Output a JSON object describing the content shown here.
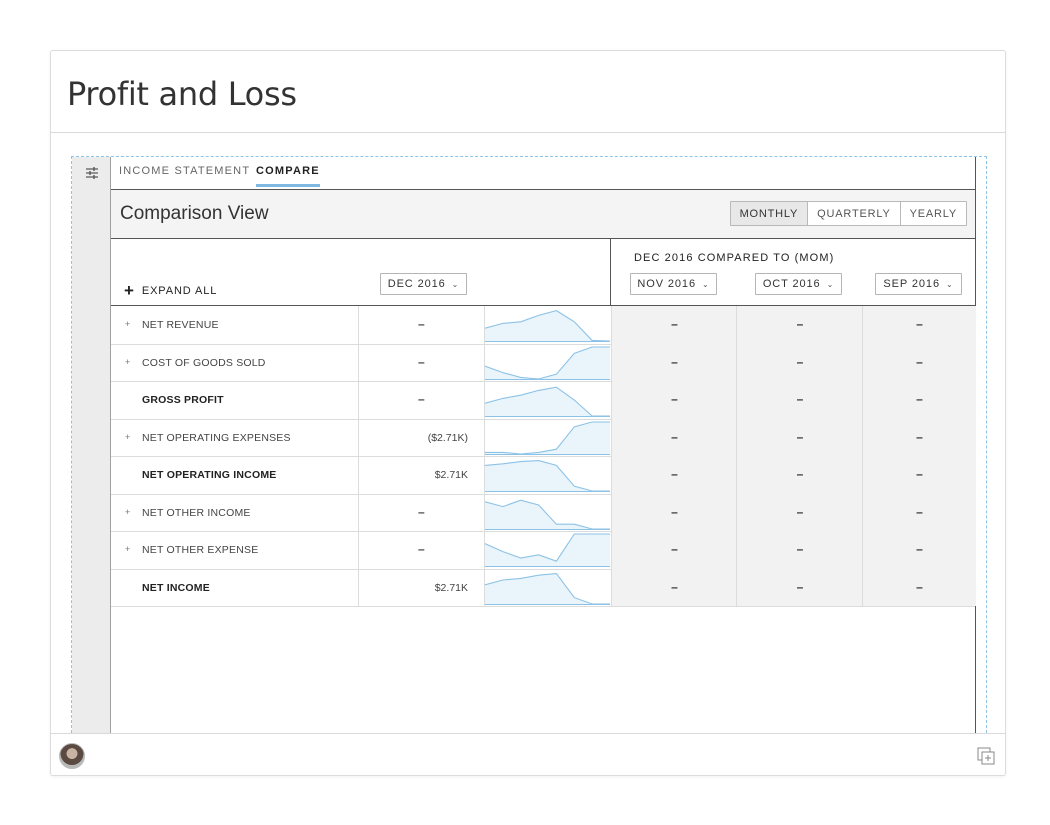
{
  "page": {
    "title": "Profit and Loss"
  },
  "tabs": [
    {
      "label": "INCOME STATEMENT",
      "active": false
    },
    {
      "label": "COMPARE",
      "active": true
    }
  ],
  "view": {
    "title": "Comparison View",
    "periods": [
      {
        "label": "MONTHLY",
        "active": true
      },
      {
        "label": "QUARTERLY",
        "active": false
      },
      {
        "label": "YEARLY",
        "active": false
      }
    ]
  },
  "table": {
    "expand_all": "EXPAND ALL",
    "base_period": "DEC 2016",
    "compare_label": "DEC 2016 COMPARED TO (MOM)",
    "compare_periods": [
      "NOV 2016",
      "OCT 2016",
      "SEP 2016"
    ],
    "rows": [
      {
        "label": "NET REVENUE",
        "expandable": true,
        "bold": false,
        "value": "–",
        "compare": [
          "–",
          "–",
          "–"
        ],
        "spark": [
          0.4,
          0.55,
          0.6,
          0.8,
          0.95,
          0.6,
          0.02,
          0.0
        ]
      },
      {
        "label": "COST OF GOODS SOLD",
        "expandable": true,
        "bold": false,
        "value": "–",
        "compare": [
          "–",
          "–",
          "–"
        ],
        "spark": [
          0.4,
          0.2,
          0.05,
          0.0,
          0.15,
          0.8,
          1.0,
          1.0
        ]
      },
      {
        "label": "GROSS PROFIT",
        "expandable": false,
        "bold": true,
        "value": "–",
        "compare": [
          "–",
          "–",
          "–"
        ],
        "spark": [
          0.4,
          0.55,
          0.65,
          0.8,
          0.9,
          0.5,
          0.0,
          0.0
        ]
      },
      {
        "label": "NET OPERATING EXPENSES",
        "expandable": true,
        "bold": false,
        "value": "($2.71K)",
        "compare": [
          "–",
          "–",
          "–"
        ],
        "spark": [
          0.05,
          0.05,
          0.0,
          0.05,
          0.15,
          0.85,
          1.0,
          1.0
        ]
      },
      {
        "label": "NET OPERATING INCOME",
        "expandable": false,
        "bold": true,
        "value": "$2.71K",
        "compare": [
          "–",
          "–",
          "–"
        ],
        "spark": [
          0.8,
          0.85,
          0.92,
          0.95,
          0.8,
          0.15,
          0.0,
          0.0
        ]
      },
      {
        "label": "NET OTHER INCOME",
        "expandable": true,
        "bold": false,
        "value": "–",
        "compare": [
          "–",
          "–",
          "–"
        ],
        "spark": [
          0.85,
          0.7,
          0.9,
          0.75,
          0.15,
          0.15,
          0.0,
          0.0
        ]
      },
      {
        "label": "NET OTHER EXPENSE",
        "expandable": true,
        "bold": false,
        "value": "–",
        "compare": [
          "–",
          "–",
          "–"
        ],
        "spark": [
          0.7,
          0.45,
          0.25,
          0.35,
          0.15,
          1.0,
          1.0,
          1.0
        ]
      },
      {
        "label": "NET INCOME",
        "expandable": false,
        "bold": true,
        "value": "$2.71K",
        "compare": [
          "–",
          "–",
          "–"
        ],
        "spark": [
          0.6,
          0.75,
          0.8,
          0.9,
          0.95,
          0.2,
          0.0,
          0.0
        ]
      }
    ]
  },
  "colors": {
    "accent": "#7fb8e0",
    "spark_line": "#8cc2e6",
    "spark_fill": "#eaf4fb"
  }
}
